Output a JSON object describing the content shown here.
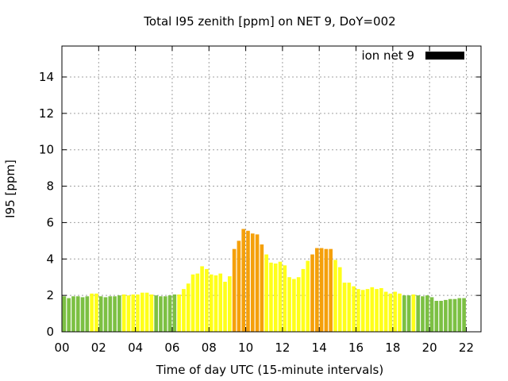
{
  "chart_data": {
    "type": "bar",
    "title": "Total I95 zenith [ppm] on NET 9, DoY=002",
    "xlabel": "Time of day UTC (15-minute intervals)",
    "ylabel": "I95 [ppm]",
    "xlim": [
      0,
      22.8
    ],
    "ylim": [
      0,
      15.7
    ],
    "x_tick_labels": [
      "00",
      "02",
      "04",
      "06",
      "08",
      "10",
      "12",
      "14",
      "16",
      "18",
      "20",
      "22"
    ],
    "x_tick_values": [
      0,
      2,
      4,
      6,
      8,
      10,
      12,
      14,
      16,
      18,
      20,
      22
    ],
    "y_ticks": [
      0,
      2,
      4,
      6,
      8,
      10,
      12,
      14
    ],
    "grid": true,
    "legend": {
      "label": "ion net 9",
      "color": "#000000",
      "position": "top-right"
    },
    "bar_width_hours": 0.2,
    "level_colors": {
      "green": "#7cc043",
      "yellow": "#ffff1a",
      "orange": "#f5a00a"
    },
    "bars": [
      {
        "x": 0.125,
        "value": 1.95,
        "level": "green"
      },
      {
        "x": 0.375,
        "value": 1.85,
        "level": "green"
      },
      {
        "x": 0.625,
        "value": 1.95,
        "level": "green"
      },
      {
        "x": 0.875,
        "value": 1.95,
        "level": "green"
      },
      {
        "x": 1.125,
        "value": 1.9,
        "level": "green"
      },
      {
        "x": 1.375,
        "value": 1.95,
        "level": "green"
      },
      {
        "x": 1.625,
        "value": 2.1,
        "level": "yellow"
      },
      {
        "x": 1.875,
        "value": 2.1,
        "level": "yellow"
      },
      {
        "x": 2.125,
        "value": 1.95,
        "level": "green"
      },
      {
        "x": 2.375,
        "value": 1.9,
        "level": "green"
      },
      {
        "x": 2.625,
        "value": 1.95,
        "level": "green"
      },
      {
        "x": 2.875,
        "value": 1.95,
        "level": "green"
      },
      {
        "x": 3.125,
        "value": 2.0,
        "level": "green"
      },
      {
        "x": 3.375,
        "value": 2.05,
        "level": "yellow"
      },
      {
        "x": 3.625,
        "value": 2.0,
        "level": "yellow"
      },
      {
        "x": 3.875,
        "value": 2.05,
        "level": "yellow"
      },
      {
        "x": 4.125,
        "value": 2.05,
        "level": "yellow"
      },
      {
        "x": 4.375,
        "value": 2.15,
        "level": "yellow"
      },
      {
        "x": 4.625,
        "value": 2.15,
        "level": "yellow"
      },
      {
        "x": 4.875,
        "value": 2.05,
        "level": "yellow"
      },
      {
        "x": 5.125,
        "value": 2.0,
        "level": "green"
      },
      {
        "x": 5.375,
        "value": 1.95,
        "level": "green"
      },
      {
        "x": 5.625,
        "value": 1.95,
        "level": "green"
      },
      {
        "x": 5.875,
        "value": 2.0,
        "level": "green"
      },
      {
        "x": 6.125,
        "value": 2.05,
        "level": "green"
      },
      {
        "x": 6.375,
        "value": 2.05,
        "level": "yellow"
      },
      {
        "x": 6.625,
        "value": 2.35,
        "level": "yellow"
      },
      {
        "x": 6.875,
        "value": 2.65,
        "level": "yellow"
      },
      {
        "x": 7.125,
        "value": 3.15,
        "level": "yellow"
      },
      {
        "x": 7.375,
        "value": 3.2,
        "level": "yellow"
      },
      {
        "x": 7.625,
        "value": 3.6,
        "level": "yellow"
      },
      {
        "x": 7.875,
        "value": 3.45,
        "level": "yellow"
      },
      {
        "x": 8.125,
        "value": 3.15,
        "level": "yellow"
      },
      {
        "x": 8.375,
        "value": 3.1,
        "level": "yellow"
      },
      {
        "x": 8.625,
        "value": 3.2,
        "level": "yellow"
      },
      {
        "x": 8.875,
        "value": 2.75,
        "level": "yellow"
      },
      {
        "x": 9.125,
        "value": 3.05,
        "level": "yellow"
      },
      {
        "x": 9.375,
        "value": 4.55,
        "level": "orange"
      },
      {
        "x": 9.625,
        "value": 5.0,
        "level": "orange"
      },
      {
        "x": 9.875,
        "value": 5.65,
        "level": "orange"
      },
      {
        "x": 10.125,
        "value": 5.55,
        "level": "orange"
      },
      {
        "x": 10.375,
        "value": 5.4,
        "level": "orange"
      },
      {
        "x": 10.625,
        "value": 5.35,
        "level": "orange"
      },
      {
        "x": 10.875,
        "value": 4.8,
        "level": "orange"
      },
      {
        "x": 11.125,
        "value": 4.25,
        "level": "yellow"
      },
      {
        "x": 11.375,
        "value": 3.8,
        "level": "yellow"
      },
      {
        "x": 11.625,
        "value": 3.75,
        "level": "yellow"
      },
      {
        "x": 11.875,
        "value": 3.85,
        "level": "yellow"
      },
      {
        "x": 12.125,
        "value": 3.65,
        "level": "yellow"
      },
      {
        "x": 12.375,
        "value": 3.0,
        "level": "yellow"
      },
      {
        "x": 12.625,
        "value": 2.9,
        "level": "yellow"
      },
      {
        "x": 12.875,
        "value": 3.0,
        "level": "yellow"
      },
      {
        "x": 13.125,
        "value": 3.45,
        "level": "yellow"
      },
      {
        "x": 13.375,
        "value": 3.9,
        "level": "yellow"
      },
      {
        "x": 13.625,
        "value": 4.25,
        "level": "orange"
      },
      {
        "x": 13.875,
        "value": 4.6,
        "level": "orange"
      },
      {
        "x": 14.125,
        "value": 4.6,
        "level": "orange"
      },
      {
        "x": 14.375,
        "value": 4.55,
        "level": "orange"
      },
      {
        "x": 14.625,
        "value": 4.55,
        "level": "orange"
      },
      {
        "x": 14.875,
        "value": 3.95,
        "level": "yellow"
      },
      {
        "x": 15.125,
        "value": 3.55,
        "level": "yellow"
      },
      {
        "x": 15.375,
        "value": 2.7,
        "level": "yellow"
      },
      {
        "x": 15.625,
        "value": 2.7,
        "level": "yellow"
      },
      {
        "x": 15.875,
        "value": 2.5,
        "level": "yellow"
      },
      {
        "x": 16.125,
        "value": 2.35,
        "level": "yellow"
      },
      {
        "x": 16.375,
        "value": 2.3,
        "level": "yellow"
      },
      {
        "x": 16.625,
        "value": 2.35,
        "level": "yellow"
      },
      {
        "x": 16.875,
        "value": 2.45,
        "level": "yellow"
      },
      {
        "x": 17.125,
        "value": 2.35,
        "level": "yellow"
      },
      {
        "x": 17.375,
        "value": 2.4,
        "level": "yellow"
      },
      {
        "x": 17.625,
        "value": 2.2,
        "level": "yellow"
      },
      {
        "x": 17.875,
        "value": 2.1,
        "level": "yellow"
      },
      {
        "x": 18.125,
        "value": 2.2,
        "level": "yellow"
      },
      {
        "x": 18.375,
        "value": 2.1,
        "level": "yellow"
      },
      {
        "x": 18.625,
        "value": 2.0,
        "level": "green"
      },
      {
        "x": 18.875,
        "value": 2.0,
        "level": "green"
      },
      {
        "x": 19.125,
        "value": 2.05,
        "level": "yellow"
      },
      {
        "x": 19.375,
        "value": 2.0,
        "level": "green"
      },
      {
        "x": 19.625,
        "value": 1.95,
        "level": "green"
      },
      {
        "x": 19.875,
        "value": 2.0,
        "level": "green"
      },
      {
        "x": 20.125,
        "value": 1.9,
        "level": "green"
      },
      {
        "x": 20.375,
        "value": 1.7,
        "level": "green"
      },
      {
        "x": 20.625,
        "value": 1.7,
        "level": "green"
      },
      {
        "x": 20.875,
        "value": 1.75,
        "level": "green"
      },
      {
        "x": 21.125,
        "value": 1.8,
        "level": "green"
      },
      {
        "x": 21.375,
        "value": 1.8,
        "level": "green"
      },
      {
        "x": 21.625,
        "value": 1.85,
        "level": "green"
      },
      {
        "x": 21.875,
        "value": 1.85,
        "level": "green"
      }
    ]
  }
}
